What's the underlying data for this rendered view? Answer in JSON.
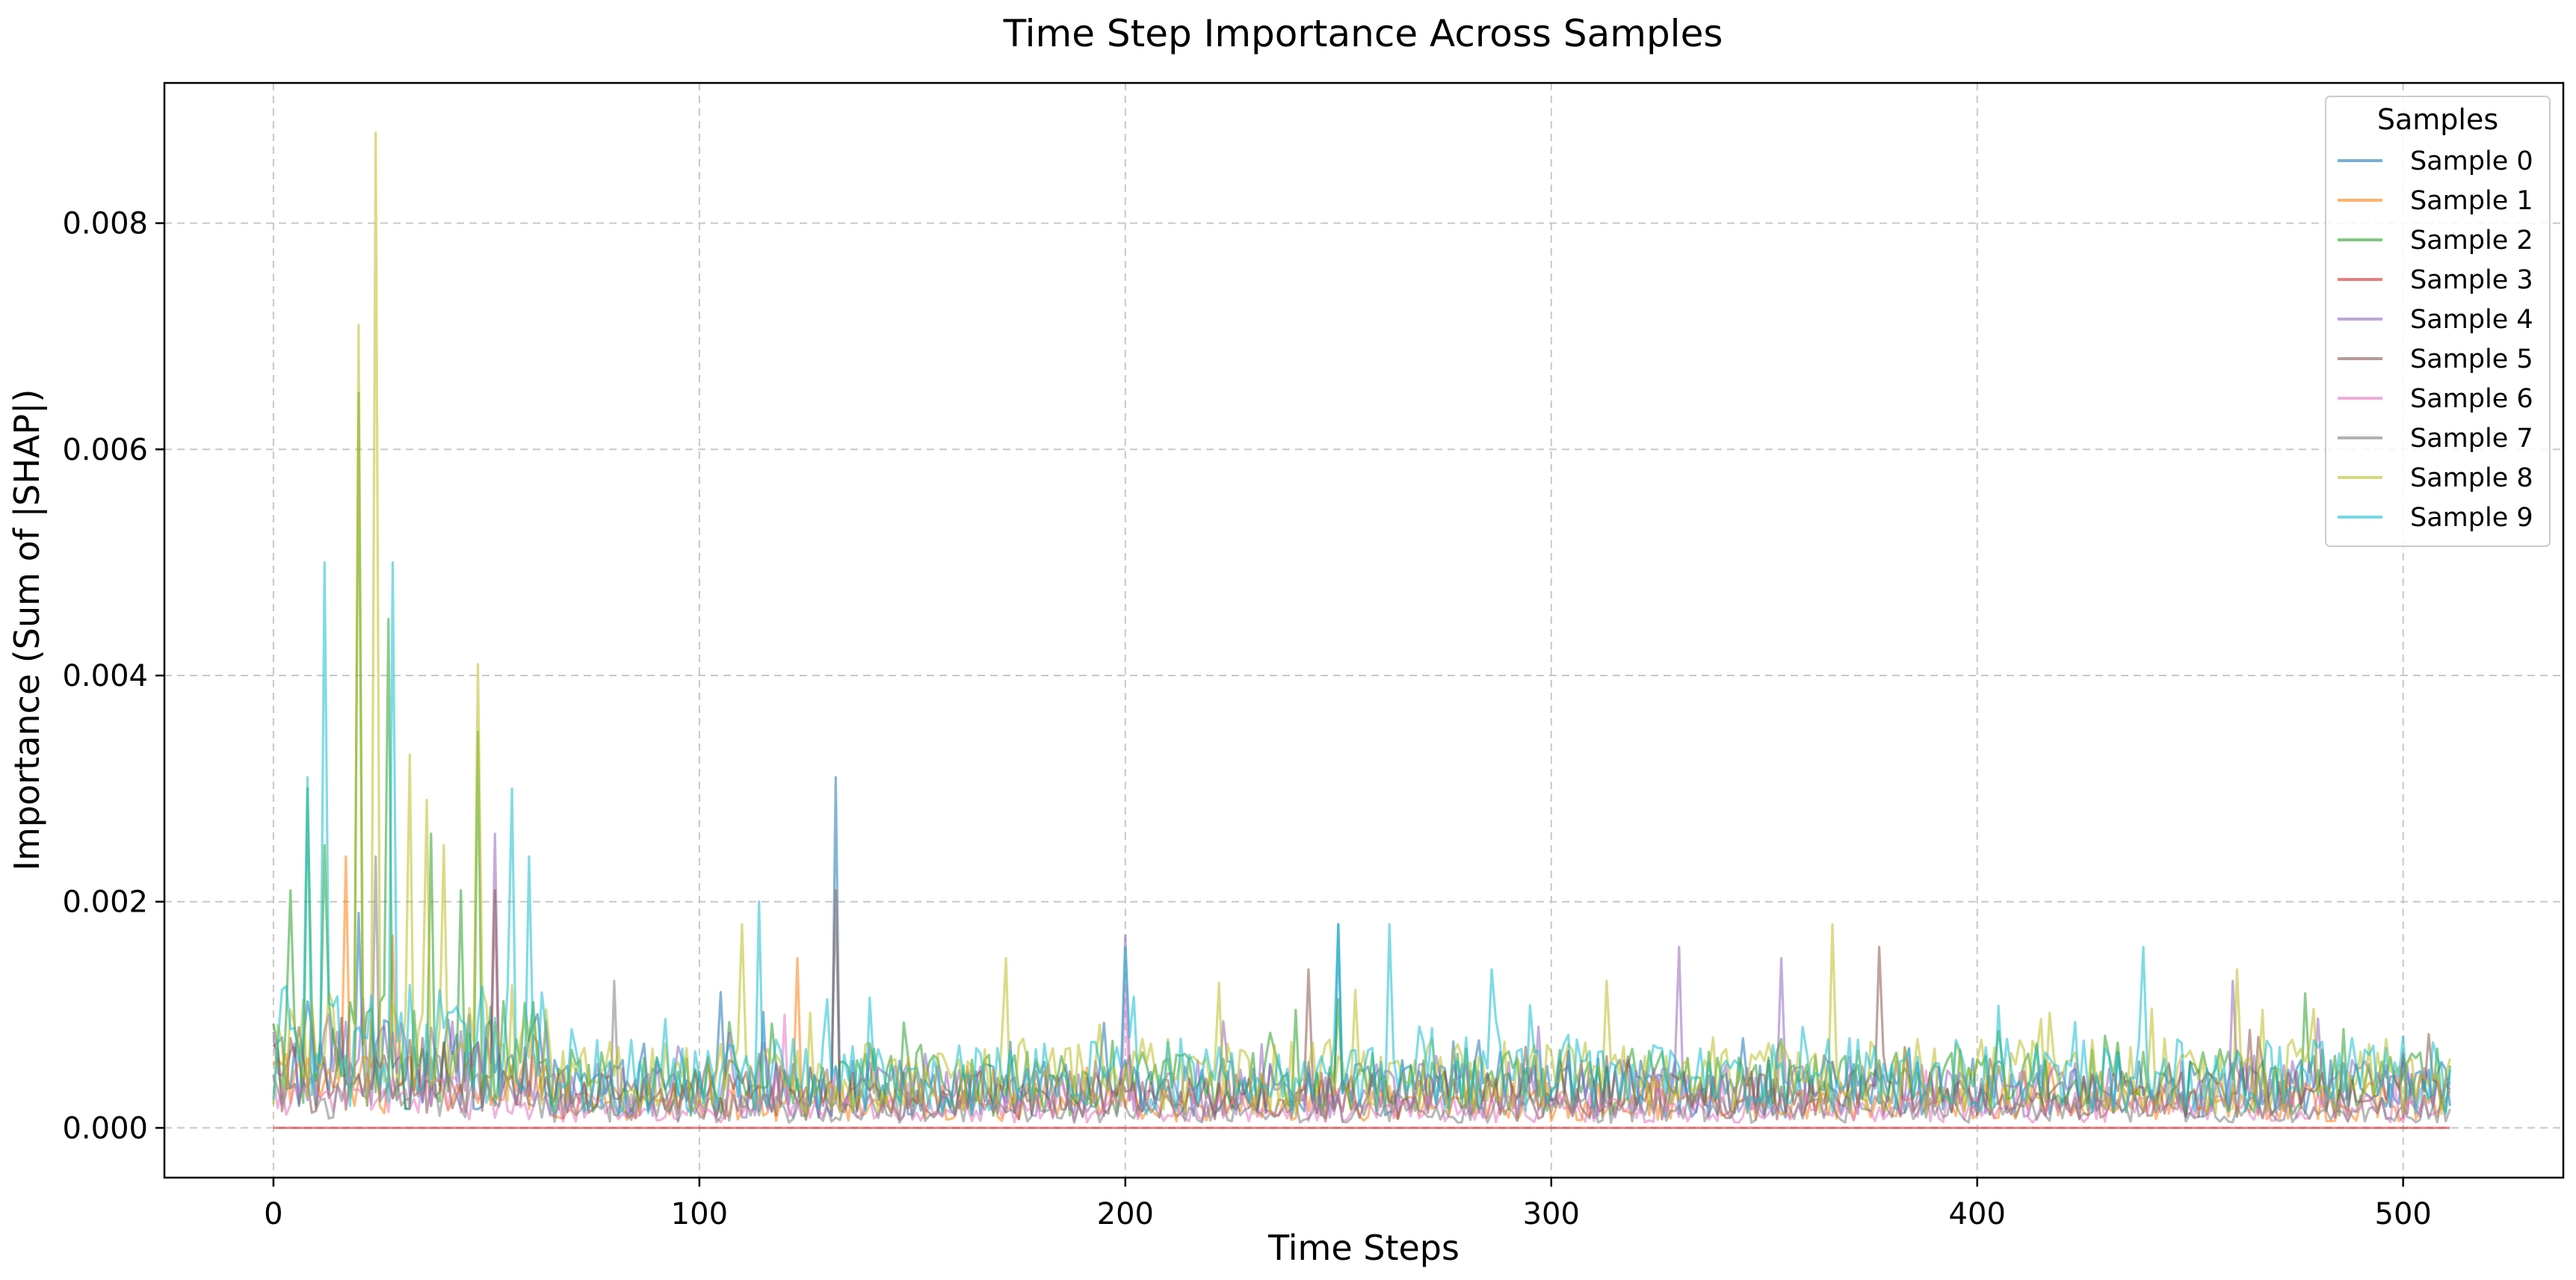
{
  "chart_data": {
    "type": "line",
    "title": "Time Step Importance Across Samples",
    "xlabel": "Time Steps",
    "ylabel": "Importance (Sum of |SHAP|)",
    "xlim": [
      -25.6,
      537.6
    ],
    "ylim": [
      -0.00044,
      0.00924
    ],
    "x_ticks": [
      0,
      100,
      200,
      300,
      400,
      500
    ],
    "x_tick_labels": [
      "0",
      "100",
      "200",
      "300",
      "400",
      "500"
    ],
    "y_ticks": [
      0.0,
      0.002,
      0.004,
      0.006,
      0.008
    ],
    "y_tick_labels": [
      "0.000",
      "0.002",
      "0.004",
      "0.006",
      "0.008"
    ],
    "grid": true,
    "legend": {
      "title": "Samples",
      "placement": "top-right"
    },
    "x_range": [
      0,
      511
    ],
    "series": [
      {
        "name": "Sample 0",
        "color": "#1f77b4",
        "peaks": [
          [
            132,
            0.0031
          ],
          [
            250,
            0.0018
          ],
          [
            20,
            0.0019
          ],
          [
            105,
            0.0012
          ]
        ],
        "base": 0.0003
      },
      {
        "name": "Sample 1",
        "color": "#ff7f0e",
        "peaks": [
          [
            123,
            0.0015
          ],
          [
            17,
            0.0024
          ],
          [
            28,
            0.0017
          ]
        ],
        "base": 0.0002
      },
      {
        "name": "Sample 2",
        "color": "#2ca02c",
        "peaks": [
          [
            20,
            0.0065
          ],
          [
            27,
            0.0045
          ],
          [
            8,
            0.003
          ],
          [
            48,
            0.0035
          ],
          [
            12,
            0.0025
          ],
          [
            37,
            0.0026
          ],
          [
            44,
            0.0021
          ],
          [
            4,
            0.0021
          ]
        ],
        "base": 0.00035
      },
      {
        "name": "Sample 3",
        "color": "#d62728",
        "peaks": [],
        "base": 0.0
      },
      {
        "name": "Sample 4",
        "color": "#9467bd",
        "peaks": [
          [
            52,
            0.0026
          ],
          [
            200,
            0.0017
          ],
          [
            330,
            0.0016
          ],
          [
            354,
            0.0015
          ],
          [
            460,
            0.0013
          ]
        ],
        "base": 0.0003
      },
      {
        "name": "Sample 5",
        "color": "#8c564b",
        "peaks": [
          [
            52,
            0.0021
          ],
          [
            377,
            0.0016
          ],
          [
            243,
            0.0014
          ],
          [
            132,
            0.0021
          ]
        ],
        "base": 0.00025
      },
      {
        "name": "Sample 6",
        "color": "#e377c2",
        "peaks": [
          [
            200,
            0.0013
          ],
          [
            120,
            0.001
          ]
        ],
        "base": 0.00015
      },
      {
        "name": "Sample 7",
        "color": "#7f7f7f",
        "peaks": [
          [
            24,
            0.0024
          ],
          [
            80,
            0.0013
          ]
        ],
        "base": 0.00015
      },
      {
        "name": "Sample 8",
        "color": "#bcbd22",
        "peaks": [
          [
            24,
            0.0088
          ],
          [
            20,
            0.0071
          ],
          [
            48,
            0.0041
          ],
          [
            32,
            0.0033
          ],
          [
            36,
            0.0029
          ],
          [
            40,
            0.0025
          ],
          [
            110,
            0.0018
          ],
          [
            366,
            0.0018
          ],
          [
            461,
            0.0014
          ],
          [
            172,
            0.0015
          ]
        ],
        "base": 0.0004
      },
      {
        "name": "Sample 9",
        "color": "#17becf",
        "peaks": [
          [
            28,
            0.005
          ],
          [
            12,
            0.005
          ],
          [
            8,
            0.0031
          ],
          [
            56,
            0.003
          ],
          [
            60,
            0.0024
          ],
          [
            114,
            0.002
          ],
          [
            250,
            0.0018
          ],
          [
            262,
            0.0018
          ],
          [
            439,
            0.0016
          ],
          [
            286,
            0.0014
          ],
          [
            200,
            0.0016
          ]
        ],
        "base": 0.0004
      }
    ]
  }
}
